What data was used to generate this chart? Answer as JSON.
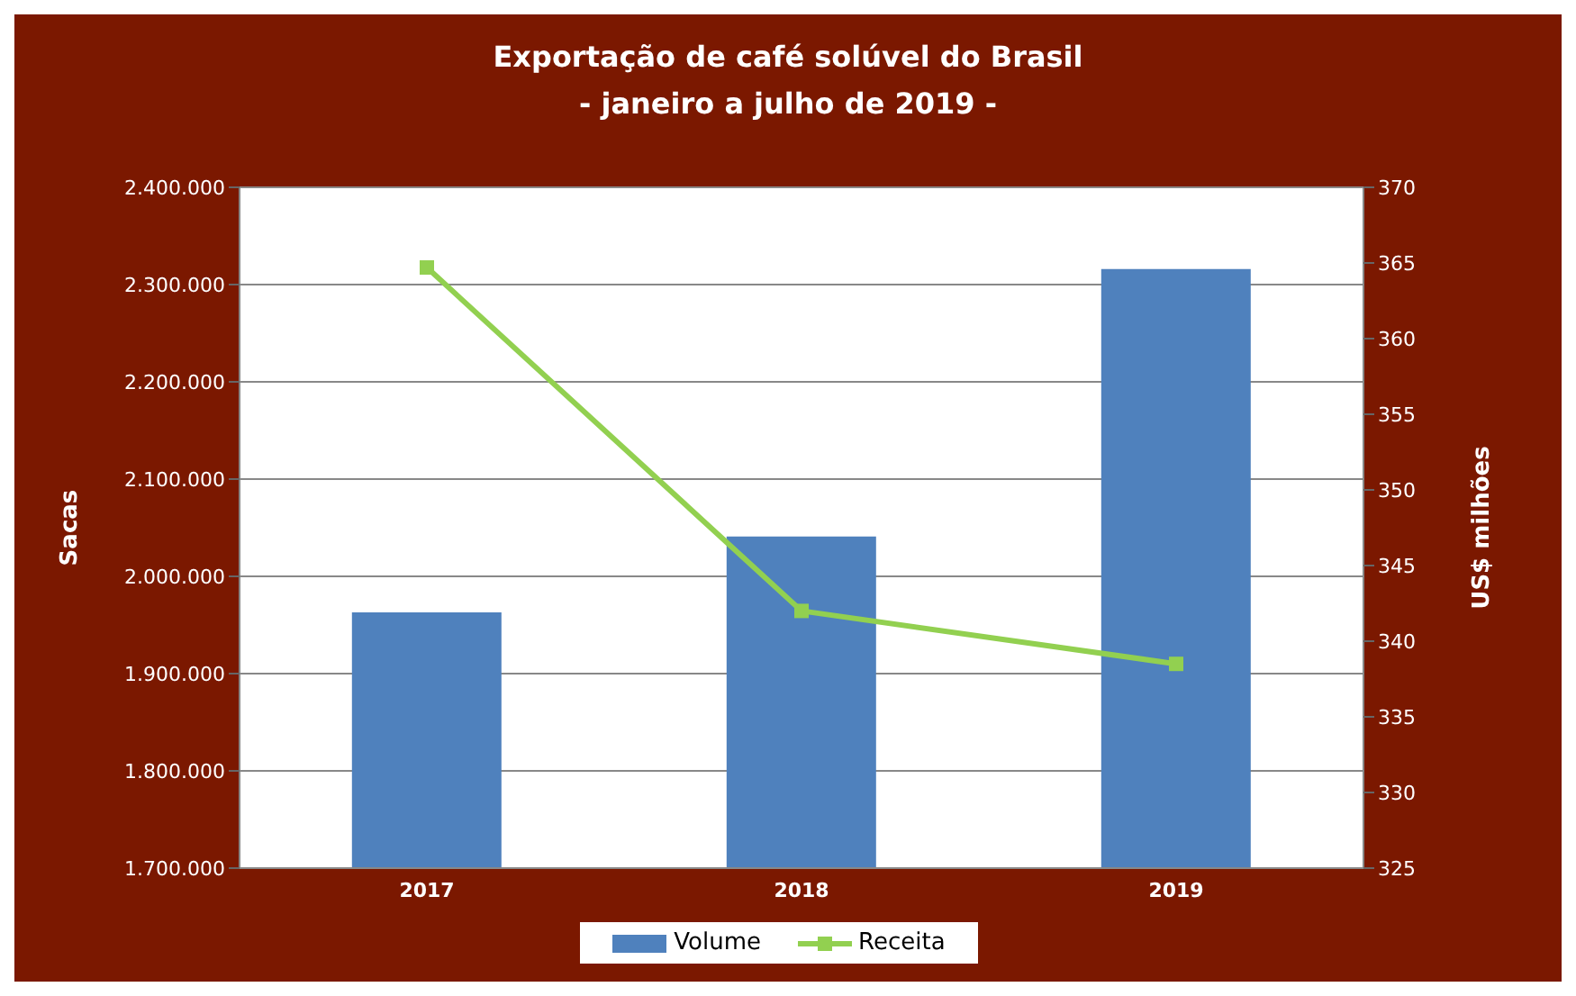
{
  "chart_data": {
    "type": "bar",
    "title": "Exportação de café solúvel do Brasil",
    "subtitle": "- janeiro a julho de 2019 -",
    "ylabel": "Sacas",
    "y2label": "US$ milhões",
    "categories": [
      "2017",
      "2018",
      "2019"
    ],
    "series": [
      {
        "name": "Volume",
        "color": "#4f81bd",
        "values": [
          1963000,
          2041000,
          2316000
        ]
      },
      {
        "name": "Receita",
        "type": "line",
        "axis": "y2",
        "color": "#92d050",
        "marker": "square",
        "values": [
          364.7,
          342.0,
          338.5
        ]
      }
    ],
    "ylim": [
      1700000,
      2400000
    ],
    "yticks": [
      {
        "value": 1700000,
        "label": "1.700.000"
      },
      {
        "value": 1800000,
        "label": "1.800.000"
      },
      {
        "value": 1900000,
        "label": "1.900.000"
      },
      {
        "value": 2000000,
        "label": "2.000.000"
      },
      {
        "value": 2100000,
        "label": "2.100.000"
      },
      {
        "value": 2200000,
        "label": "2.200.000"
      },
      {
        "value": 2300000,
        "label": "2.300.000"
      },
      {
        "value": 2400000,
        "label": "2.400.000"
      }
    ],
    "y2lim": [
      325,
      370
    ],
    "y2ticks": [
      325,
      330,
      335,
      340,
      345,
      350,
      355,
      360,
      365,
      370
    ],
    "grid": "y",
    "legend": "bottom"
  }
}
